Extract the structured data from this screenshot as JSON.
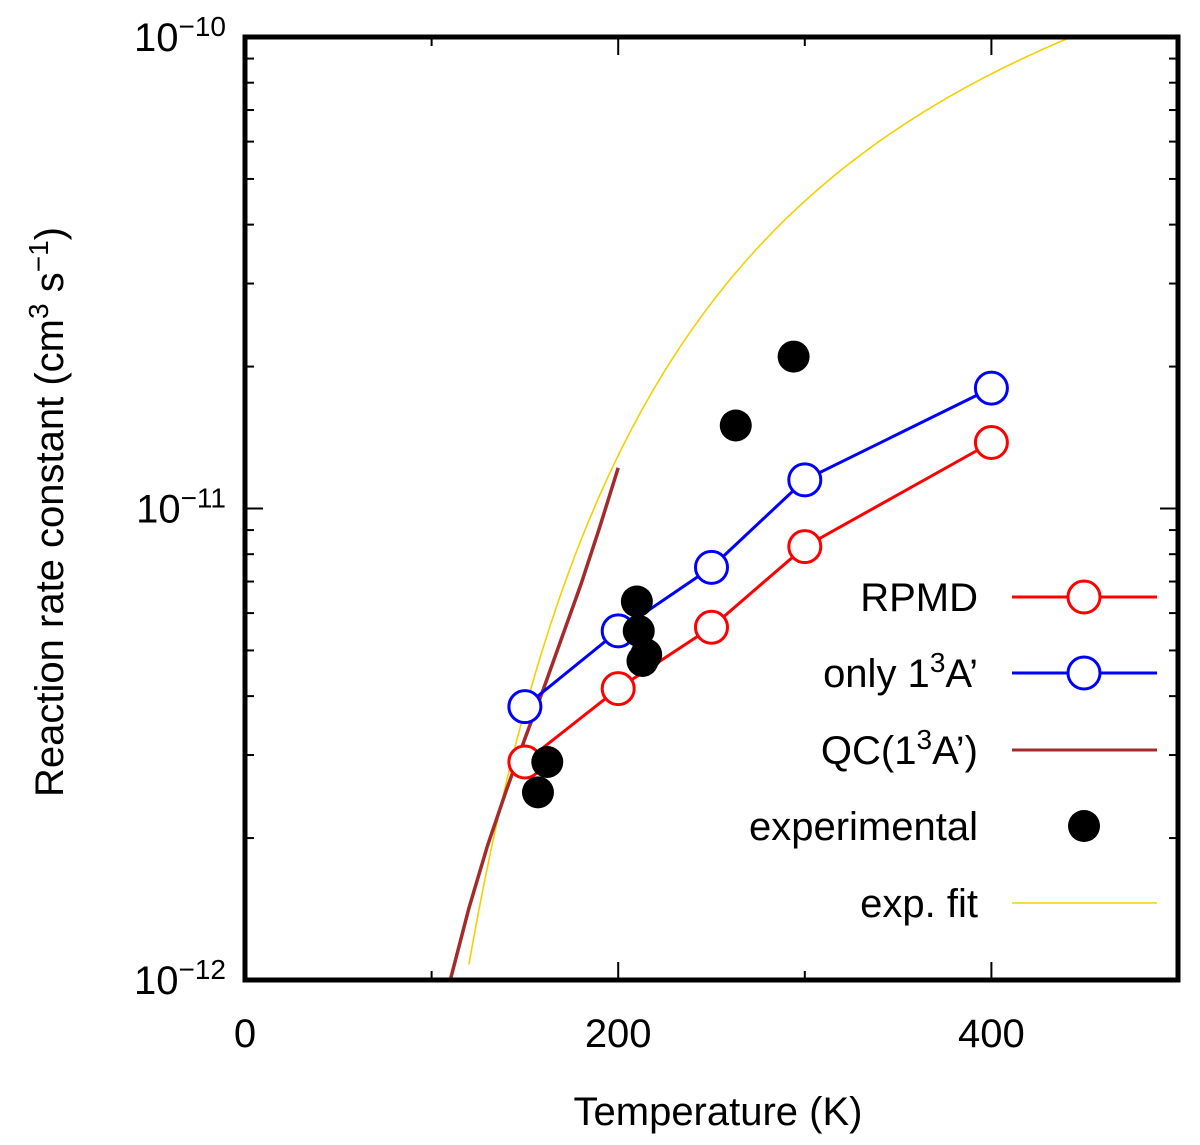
{
  "chart_data": {
    "type": "line",
    "title": "",
    "xlabel": "Temperature (K)",
    "ylabel": {
      "text": "Reaction rate constant (cm",
      "sup1": "3",
      "mid": " s",
      "sup2": "−1",
      "end": ")"
    },
    "xlim": [
      0,
      500
    ],
    "ylim": [
      1e-12,
      1e-10
    ],
    "yscale": "log",
    "x_ticks": [
      {
        "value": 0,
        "label": "0"
      },
      {
        "value": 200,
        "label": "200"
      },
      {
        "value": 400,
        "label": "400"
      }
    ],
    "y_ticks": [
      {
        "value": 1e-12,
        "base": "10",
        "exp": "−12"
      },
      {
        "value": 1e-11,
        "base": "10",
        "exp": "−11"
      },
      {
        "value": 1e-10,
        "base": "10",
        "exp": "−10"
      }
    ],
    "legend_position": "bottom-right",
    "series": [
      {
        "id": "rpmd",
        "name": "RPMD",
        "color": "#ff0000",
        "marker": "open-circle",
        "line": true,
        "x": [
          150,
          200,
          250,
          300,
          400
        ],
        "y": [
          2.9e-12,
          4.15e-12,
          5.6e-12,
          8.3e-12,
          1.38e-11
        ]
      },
      {
        "id": "only13a",
        "name": "only 1",
        "name_sup": "3",
        "name_end": "A’",
        "color": "#0000ff",
        "marker": "open-circle",
        "line": true,
        "x": [
          150,
          200,
          250,
          300,
          400
        ],
        "y": [
          3.8e-12,
          5.5e-12,
          7.5e-12,
          1.15e-11,
          1.8e-11
        ]
      },
      {
        "id": "qc",
        "name": "QC(1",
        "name_sup": "3",
        "name_end": "A’)",
        "color": "#a52a2a",
        "marker": "none",
        "line": true,
        "x": [
          110,
          120,
          130,
          140,
          150,
          160,
          170,
          180,
          190,
          200
        ],
        "y": [
          1e-12,
          1.42e-12,
          1.93e-12,
          2.52e-12,
          3.25e-12,
          4.15e-12,
          5.35e-12,
          6.9e-12,
          9.1e-12,
          1.22e-11
        ]
      },
      {
        "id": "experimental",
        "name": "experimental",
        "color": "#000000",
        "marker": "filled-circle",
        "line": false,
        "x": [
          157,
          162,
          210,
          211,
          213,
          215,
          263,
          294
        ],
        "y": [
          2.5e-12,
          2.9e-12,
          6.35e-12,
          5.5e-12,
          4.75e-12,
          4.9e-12,
          1.5e-11,
          2.1e-11
        ]
      },
      {
        "id": "expfit",
        "name": "exp. fit",
        "color": "#f5d000",
        "marker": "none",
        "line": true,
        "thin": true,
        "fit": {
          "A": 5.385e-10,
          "T0": 745.5
        },
        "x_range": [
          120,
          500
        ]
      }
    ]
  }
}
